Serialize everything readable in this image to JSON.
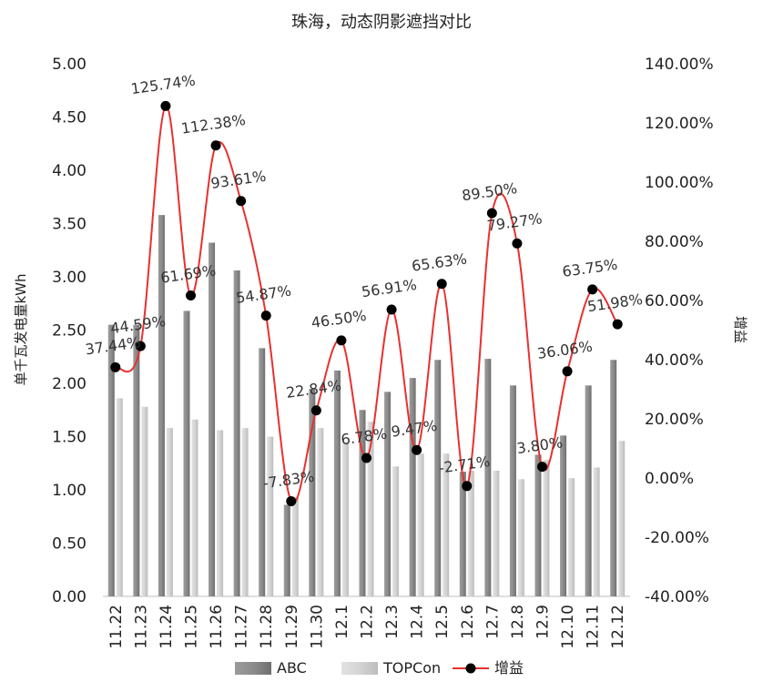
{
  "chart_data": {
    "type": "bar",
    "title": "珠海，动态阴影遮挡对比",
    "categories": [
      "11.22",
      "11.23",
      "11.24",
      "11.25",
      "11.26",
      "11.27",
      "11.28",
      "11.29",
      "11.30",
      "12.1",
      "12.2",
      "12.3",
      "12.4",
      "12.5",
      "12.6",
      "12.7",
      "12.8",
      "12.9",
      "12.10",
      "12.11",
      "12.12"
    ],
    "ylabel": "单千瓦发电量kWh",
    "y2label": "增益",
    "ylim": [
      0,
      5
    ],
    "y_ticks": [
      "0.00",
      "0.50",
      "1.00",
      "1.50",
      "2.00",
      "2.50",
      "3.00",
      "3.50",
      "4.00",
      "4.50",
      "5.00"
    ],
    "y2lim": [
      -40,
      140
    ],
    "y2_ticks": [
      "-40.00%",
      "-20.00%",
      "0.00%",
      "20.00%",
      "40.00%",
      "60.00%",
      "80.00%",
      "100.00%",
      "120.00%",
      "140.00%"
    ],
    "grid": false,
    "legend_position": "bottom",
    "series": [
      {
        "name": "ABC",
        "kind": "bar",
        "color": "#8c8c8c",
        "values": [
          2.55,
          2.55,
          3.58,
          2.68,
          3.32,
          3.06,
          2.33,
          0.86,
          1.95,
          2.12,
          1.75,
          1.92,
          2.05,
          2.22,
          1.17,
          2.23,
          1.98,
          1.33,
          1.51,
          1.98,
          2.22
        ]
      },
      {
        "name": "TOPCon",
        "kind": "bar",
        "color": "#d4d4d4",
        "values": [
          1.86,
          1.78,
          1.58,
          1.66,
          1.56,
          1.58,
          1.5,
          0.93,
          1.58,
          1.45,
          1.64,
          1.22,
          1.34,
          1.34,
          1.18,
          1.18,
          1.1,
          1.28,
          1.11,
          1.21,
          1.46
        ]
      },
      {
        "name": "增益",
        "kind": "line",
        "axis": "right",
        "color": "#e8312f",
        "marker_color": "#000000",
        "values": [
          37.44,
          44.59,
          125.74,
          61.69,
          112.38,
          93.61,
          54.87,
          -7.83,
          22.84,
          46.5,
          6.78,
          56.91,
          9.47,
          65.63,
          -2.71,
          89.5,
          79.27,
          3.8,
          36.06,
          63.75,
          51.98
        ],
        "labels": [
          "37.44%",
          "44.59%",
          "125.74%",
          "61.69%",
          "112.38%",
          "93.61%",
          "54.87%",
          "-7.83%",
          "22.84%",
          "46.50%",
          "6.78%",
          "56.91%",
          "9.47%",
          "65.63%",
          "-2.71%",
          "89.50%",
          "79.27%",
          "3.80%",
          "36.06%",
          "63.75%",
          "51.98%"
        ]
      }
    ]
  }
}
